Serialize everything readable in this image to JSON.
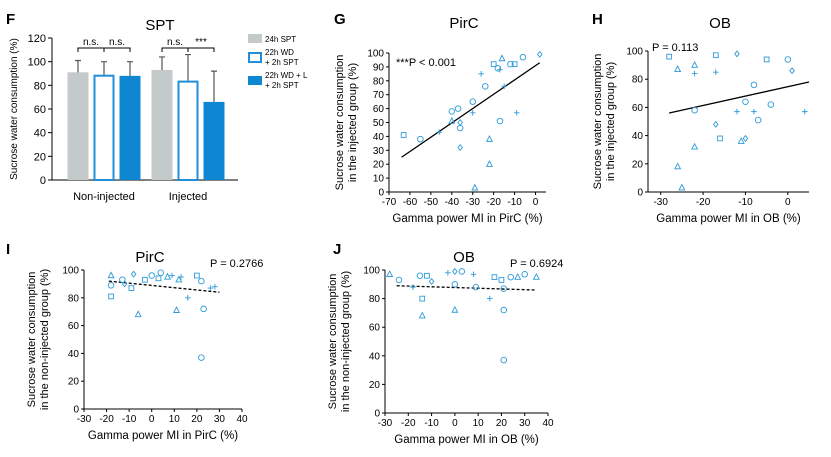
{
  "chart_data": [
    {
      "panel": "F",
      "type": "bar",
      "title": "SPT",
      "ylabel": "Sucrose water consumption (%)",
      "ylim": [
        0,
        120
      ],
      "yticks": [
        0,
        20,
        40,
        60,
        80,
        100,
        120
      ],
      "categories": [
        "Non-injected",
        "Injected"
      ],
      "series": [
        {
          "name": "24h SPT",
          "color": "#c4c9c9",
          "style": "filled",
          "values": [
            91,
            93
          ],
          "errors": [
            10,
            11
          ]
        },
        {
          "name": "22h WD\n+ 2h SPT",
          "color": "#1e8fd8",
          "style": "outline",
          "values": [
            89,
            84
          ],
          "errors": [
            11,
            22
          ]
        },
        {
          "name": "22h WD + L\n+ 2h SPT",
          "color": "#0f86d2",
          "style": "filled",
          "values": [
            88,
            66
          ],
          "errors": [
            12,
            26
          ]
        }
      ],
      "annotations": [
        {
          "group": 0,
          "from": 0,
          "to": 1,
          "text": "n.s."
        },
        {
          "group": 0,
          "from": 1,
          "to": 2,
          "text": "n.s."
        },
        {
          "group": 1,
          "from": 0,
          "to": 1,
          "text": "n.s."
        },
        {
          "group": 1,
          "from": 1,
          "to": 2,
          "text": "***"
        }
      ]
    },
    {
      "panel": "G",
      "type": "scatter",
      "title": "PirC",
      "xlabel": "Gamma power MI in PirC (%)",
      "ylabel": "Sucrose water consumption\nin the injected group (%)",
      "xlim": [
        -70,
        5
      ],
      "ylim": [
        0,
        100
      ],
      "xticks": [
        -70,
        -60,
        -50,
        -40,
        -30,
        -20,
        -10,
        0
      ],
      "yticks": [
        0,
        10,
        20,
        30,
        40,
        50,
        60,
        70,
        80,
        90,
        100
      ],
      "stat_label": "***P < 0.001",
      "fit": {
        "style": "solid",
        "x": [
          -64,
          2
        ],
        "y": [
          25,
          93
        ]
      },
      "points": [
        {
          "x": -63,
          "y": 41,
          "m": "s"
        },
        {
          "x": -55,
          "y": 38,
          "m": "o"
        },
        {
          "x": -46,
          "y": 43,
          "m": "+"
        },
        {
          "x": -40,
          "y": 58,
          "m": "o"
        },
        {
          "x": -40,
          "y": 51,
          "m": "t"
        },
        {
          "x": -37,
          "y": 60,
          "m": "o"
        },
        {
          "x": -36,
          "y": 50,
          "m": "d"
        },
        {
          "x": -36,
          "y": 46,
          "m": "o"
        },
        {
          "x": -36,
          "y": 32,
          "m": "d"
        },
        {
          "x": -30,
          "y": 65,
          "m": "o"
        },
        {
          "x": -30,
          "y": 57,
          "m": "+"
        },
        {
          "x": -29,
          "y": 3,
          "m": "t"
        },
        {
          "x": -26,
          "y": 85,
          "m": "+"
        },
        {
          "x": -24,
          "y": 76,
          "m": "o"
        },
        {
          "x": -22,
          "y": 38,
          "m": "t"
        },
        {
          "x": -22,
          "y": 20,
          "m": "t"
        },
        {
          "x": -20,
          "y": 92,
          "m": "s"
        },
        {
          "x": -18,
          "y": 89,
          "m": "o"
        },
        {
          "x": -17,
          "y": 88,
          "m": "+"
        },
        {
          "x": -16,
          "y": 96,
          "m": "t"
        },
        {
          "x": -15,
          "y": 76,
          "m": "+"
        },
        {
          "x": -12,
          "y": 92,
          "m": "o"
        },
        {
          "x": -10,
          "y": 92,
          "m": "s"
        },
        {
          "x": -9,
          "y": 57,
          "m": "+"
        },
        {
          "x": -6,
          "y": 97,
          "m": "o"
        },
        {
          "x": 2,
          "y": 99,
          "m": "d"
        },
        {
          "x": -17,
          "y": 51,
          "m": "o"
        }
      ]
    },
    {
      "panel": "H",
      "type": "scatter",
      "title": "OB",
      "xlabel": "Gamma power MI in OB (%)",
      "ylabel": "Sucrose water consumption\nin the injected group (%)",
      "xlim": [
        -33,
        5
      ],
      "ylim": [
        0,
        100
      ],
      "xticks": [
        -30,
        -20,
        -10,
        0
      ],
      "yticks": [
        0,
        20,
        40,
        60,
        80,
        100
      ],
      "stat_label": "P = 0.113",
      "fit": {
        "style": "solid",
        "x": [
          -28,
          5
        ],
        "y": [
          56,
          78
        ]
      },
      "points": [
        {
          "x": -28,
          "y": 96,
          "m": "s"
        },
        {
          "x": -26,
          "y": 87,
          "m": "t"
        },
        {
          "x": -26,
          "y": 18,
          "m": "t"
        },
        {
          "x": -25,
          "y": 3,
          "m": "t"
        },
        {
          "x": -22,
          "y": 90,
          "m": "t"
        },
        {
          "x": -22,
          "y": 84,
          "m": "+"
        },
        {
          "x": -22,
          "y": 58,
          "m": "o"
        },
        {
          "x": -22,
          "y": 32,
          "m": "t"
        },
        {
          "x": -17,
          "y": 97,
          "m": "s"
        },
        {
          "x": -17,
          "y": 85,
          "m": "+"
        },
        {
          "x": -17,
          "y": 48,
          "m": "d"
        },
        {
          "x": -16,
          "y": 38,
          "m": "s"
        },
        {
          "x": -12,
          "y": 98,
          "m": "d"
        },
        {
          "x": -12,
          "y": 57,
          "m": "+"
        },
        {
          "x": -11,
          "y": 36,
          "m": "t"
        },
        {
          "x": -10,
          "y": 64,
          "m": "o"
        },
        {
          "x": -10,
          "y": 38,
          "m": "d"
        },
        {
          "x": -8,
          "y": 76,
          "m": "o"
        },
        {
          "x": -8,
          "y": 57,
          "m": "+"
        },
        {
          "x": -7,
          "y": 51,
          "m": "o"
        },
        {
          "x": -5,
          "y": 94,
          "m": "s"
        },
        {
          "x": -4,
          "y": 62,
          "m": "o"
        },
        {
          "x": 0,
          "y": 94,
          "m": "o"
        },
        {
          "x": 1,
          "y": 86,
          "m": "d"
        },
        {
          "x": 4,
          "y": 57,
          "m": "+"
        }
      ]
    },
    {
      "panel": "I",
      "type": "scatter",
      "title": "PirC",
      "xlabel": "Gamma power MI in PirC (%)",
      "ylabel": "Sucrose water consumption\nin the non-injected group (%)",
      "xlim": [
        -30,
        40
      ],
      "ylim": [
        0,
        100
      ],
      "xticks": [
        -30,
        -20,
        -10,
        0,
        10,
        20,
        30,
        40
      ],
      "yticks": [
        0,
        20,
        40,
        60,
        80,
        100
      ],
      "stat_label": "P = 0.2766",
      "fit": {
        "style": "dashed",
        "x": [
          -19,
          30
        ],
        "y": [
          92,
          84
        ]
      },
      "points": [
        {
          "x": -18,
          "y": 96,
          "m": "t"
        },
        {
          "x": -18,
          "y": 89,
          "m": "o"
        },
        {
          "x": -18,
          "y": 81,
          "m": "s"
        },
        {
          "x": -13,
          "y": 93,
          "m": "o"
        },
        {
          "x": -12,
          "y": 90,
          "m": "d"
        },
        {
          "x": -9,
          "y": 87,
          "m": "s"
        },
        {
          "x": -8,
          "y": 97,
          "m": "d"
        },
        {
          "x": -6,
          "y": 68,
          "m": "t"
        },
        {
          "x": -3,
          "y": 93,
          "m": "s"
        },
        {
          "x": 0,
          "y": 96,
          "m": "o"
        },
        {
          "x": 3,
          "y": 94,
          "m": "s"
        },
        {
          "x": 4,
          "y": 98,
          "m": "o"
        },
        {
          "x": 7,
          "y": 95,
          "m": "t"
        },
        {
          "x": 9,
          "y": 96,
          "m": "+"
        },
        {
          "x": 11,
          "y": 71,
          "m": "t"
        },
        {
          "x": 12,
          "y": 93,
          "m": "t"
        },
        {
          "x": 13,
          "y": 95,
          "m": "+"
        },
        {
          "x": 16,
          "y": 80,
          "m": "+"
        },
        {
          "x": 20,
          "y": 96,
          "m": "s"
        },
        {
          "x": 22,
          "y": 92,
          "m": "o"
        },
        {
          "x": 23,
          "y": 72,
          "m": "o"
        },
        {
          "x": 26,
          "y": 87,
          "m": "+"
        },
        {
          "x": 28,
          "y": 88,
          "m": "+"
        },
        {
          "x": 22,
          "y": 37,
          "m": "o"
        }
      ]
    },
    {
      "panel": "J",
      "type": "scatter",
      "title": "OB",
      "xlabel": "Gamma power MI in OB (%)",
      "ylabel": "Sucrose water consumption\nin the non-injected group (%)",
      "xlim": [
        -30,
        40
      ],
      "ylim": [
        0,
        100
      ],
      "xticks": [
        -30,
        -20,
        -10,
        0,
        10,
        20,
        30,
        40
      ],
      "yticks": [
        0,
        20,
        40,
        60,
        80,
        100
      ],
      "stat_label": "P = 0.6924",
      "fit": {
        "style": "dashed",
        "x": [
          -25,
          35
        ],
        "y": [
          89,
          86
        ]
      },
      "points": [
        {
          "x": -28,
          "y": 97,
          "m": "t"
        },
        {
          "x": -24,
          "y": 93,
          "m": "o"
        },
        {
          "x": -18,
          "y": 88,
          "m": "+"
        },
        {
          "x": -15,
          "y": 96,
          "m": "o"
        },
        {
          "x": -14,
          "y": 80,
          "m": "s"
        },
        {
          "x": -14,
          "y": 68,
          "m": "t"
        },
        {
          "x": -12,
          "y": 96,
          "m": "s"
        },
        {
          "x": -10,
          "y": 92,
          "m": "d"
        },
        {
          "x": -3,
          "y": 98,
          "m": "+"
        },
        {
          "x": 0,
          "y": 99,
          "m": "d"
        },
        {
          "x": 0,
          "y": 90,
          "m": "o"
        },
        {
          "x": 0,
          "y": 72,
          "m": "t"
        },
        {
          "x": 3,
          "y": 99,
          "m": "o"
        },
        {
          "x": 8,
          "y": 97,
          "m": "+"
        },
        {
          "x": 9,
          "y": 88,
          "m": "o"
        },
        {
          "x": 15,
          "y": 80,
          "m": "+"
        },
        {
          "x": 17,
          "y": 95,
          "m": "s"
        },
        {
          "x": 20,
          "y": 93,
          "m": "s"
        },
        {
          "x": 21,
          "y": 87,
          "m": "o"
        },
        {
          "x": 21,
          "y": 72,
          "m": "o"
        },
        {
          "x": 24,
          "y": 95,
          "m": "o"
        },
        {
          "x": 27,
          "y": 95,
          "m": "t"
        },
        {
          "x": 30,
          "y": 97,
          "m": "o"
        },
        {
          "x": 35,
          "y": 95,
          "m": "t"
        },
        {
          "x": 21,
          "y": 37,
          "m": "o"
        }
      ]
    }
  ]
}
